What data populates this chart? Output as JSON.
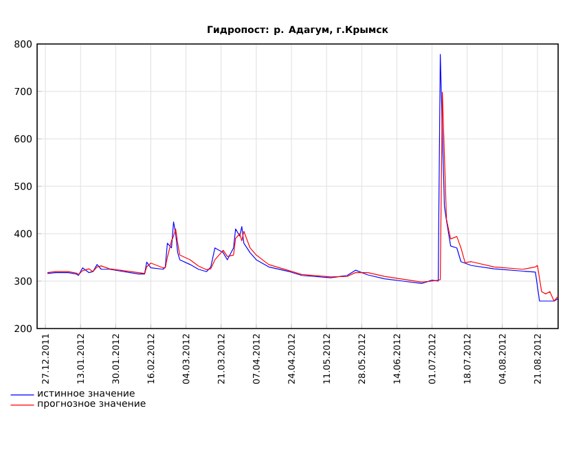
{
  "chart_data": {
    "type": "line",
    "title": "Гидропост: р. Адагум, г.Крымск",
    "x": [
      "2011-12-28",
      "2012-01-01",
      "2012-01-07",
      "2012-01-11",
      "2012-01-12",
      "2012-01-14",
      "2012-01-17",
      "2012-01-19",
      "2012-01-21",
      "2012-01-23",
      "2012-01-27",
      "2012-02-03",
      "2012-02-10",
      "2012-02-13",
      "2012-02-14",
      "2012-02-16",
      "2012-02-22",
      "2012-02-23",
      "2012-02-24",
      "2012-02-26",
      "2012-02-27",
      "2012-02-28",
      "2012-02-29",
      "2012-03-01",
      "2012-03-06",
      "2012-03-10",
      "2012-03-14",
      "2012-03-16",
      "2012-03-18",
      "2012-03-22",
      "2012-03-24",
      "2012-03-27",
      "2012-03-28",
      "2012-03-30",
      "2012-03-31",
      "2012-04-01",
      "2012-04-04",
      "2012-04-07",
      "2012-04-13",
      "2012-04-23",
      "2012-04-29",
      "2012-05-13",
      "2012-05-21",
      "2012-05-25",
      "2012-05-31",
      "2012-06-08",
      "2012-06-17",
      "2012-06-26",
      "2012-07-01",
      "2012-07-04",
      "2012-07-05",
      "2012-07-07",
      "2012-07-08",
      "2012-07-10",
      "2012-07-13",
      "2012-07-15",
      "2012-07-20",
      "2012-07-31",
      "2012-08-14",
      "2012-08-20",
      "2012-08-22",
      "2012-08-29",
      "2012-08-31"
    ],
    "series": [
      {
        "name": "истинное значение",
        "color": "#0000ff",
        "values": [
          316,
          318,
          318,
          315,
          312,
          328,
          318,
          320,
          335,
          325,
          325,
          320,
          315,
          315,
          340,
          328,
          325,
          330,
          380,
          370,
          425,
          400,
          360,
          345,
          335,
          325,
          320,
          330,
          370,
          360,
          345,
          370,
          410,
          395,
          415,
          380,
          360,
          345,
          330,
          320,
          312,
          307,
          312,
          323,
          313,
          305,
          300,
          295,
          302,
          300,
          778,
          457,
          428,
          374,
          370,
          341,
          333,
          326,
          321,
          319,
          258,
          258,
          263
        ]
      },
      {
        "name": "прогнозное значение",
        "color": "#ff0000",
        "x": [
          "2011-12-28",
          "2012-01-01",
          "2012-01-07",
          "2012-01-11",
          "2012-01-12",
          "2012-01-14",
          "2012-01-17",
          "2012-01-19",
          "2012-01-21",
          "2012-01-23",
          "2012-01-27",
          "2012-02-03",
          "2012-02-10",
          "2012-02-13",
          "2012-02-14",
          "2012-02-16",
          "2012-02-22",
          "2012-02-23",
          "2012-02-24",
          "2012-02-26",
          "2012-02-27",
          "2012-02-28",
          "2012-02-29",
          "2012-03-01",
          "2012-03-06",
          "2012-03-10",
          "2012-03-14",
          "2012-03-16",
          "2012-03-18",
          "2012-03-22",
          "2012-03-24",
          "2012-03-27",
          "2012-03-28",
          "2012-03-30",
          "2012-03-31",
          "2012-04-01",
          "2012-04-04",
          "2012-04-07",
          "2012-04-13",
          "2012-04-23",
          "2012-04-29",
          "2012-05-13",
          "2012-05-21",
          "2012-05-25",
          "2012-05-31",
          "2012-06-08",
          "2012-06-17",
          "2012-06-26",
          "2012-07-01",
          "2012-07-04",
          "2012-07-05",
          "2012-07-06",
          "2012-07-08",
          "2012-07-10",
          "2012-07-13",
          "2012-07-15",
          "2012-07-17",
          "2012-07-20",
          "2012-07-31",
          "2012-08-14",
          "2012-08-20",
          "2012-08-21",
          "2012-08-23",
          "2012-08-25",
          "2012-08-27",
          "2012-08-29",
          "2012-08-31"
        ],
        "values": [
          318,
          320,
          320,
          317,
          314,
          322,
          326,
          320,
          330,
          332,
          326,
          322,
          318,
          316,
          330,
          338,
          328,
          328,
          350,
          385,
          395,
          410,
          380,
          355,
          345,
          332,
          324,
          326,
          345,
          365,
          352,
          355,
          390,
          400,
          385,
          405,
          370,
          355,
          335,
          322,
          314,
          309,
          310,
          318,
          318,
          310,
          304,
          298,
          300,
          302,
          303,
          698,
          430,
          389,
          394,
          370,
          339,
          341,
          330,
          325,
          330,
          333,
          278,
          273,
          278,
          258,
          268
        ]
      }
    ],
    "xlim": [
      "2011-12-23",
      "2012-08-31"
    ],
    "xticks": [
      {
        "value": "2011-12-27",
        "label": "27.12.2011"
      },
      {
        "value": "2012-01-13",
        "label": "13.01.2012"
      },
      {
        "value": "2012-01-30",
        "label": "30.01.2012"
      },
      {
        "value": "2012-02-16",
        "label": "16.02.2012"
      },
      {
        "value": "2012-03-04",
        "label": "04.03.2012"
      },
      {
        "value": "2012-03-21",
        "label": "21.03.2012"
      },
      {
        "value": "2012-04-07",
        "label": "07.04.2012"
      },
      {
        "value": "2012-04-24",
        "label": "24.04.2012"
      },
      {
        "value": "2012-05-11",
        "label": "11.05.2012"
      },
      {
        "value": "2012-05-28",
        "label": "28.05.2012"
      },
      {
        "value": "2012-06-14",
        "label": "14.06.2012"
      },
      {
        "value": "2012-07-01",
        "label": "01.07.2012"
      },
      {
        "value": "2012-07-18",
        "label": "18.07.2012"
      },
      {
        "value": "2012-08-04",
        "label": "04.08.2012"
      },
      {
        "value": "2012-08-21",
        "label": "21.08.2012"
      }
    ],
    "ylim": [
      200,
      800
    ],
    "yticks": [
      200,
      300,
      400,
      500,
      600,
      700,
      800
    ],
    "grid": true,
    "legend": "bottom left"
  }
}
